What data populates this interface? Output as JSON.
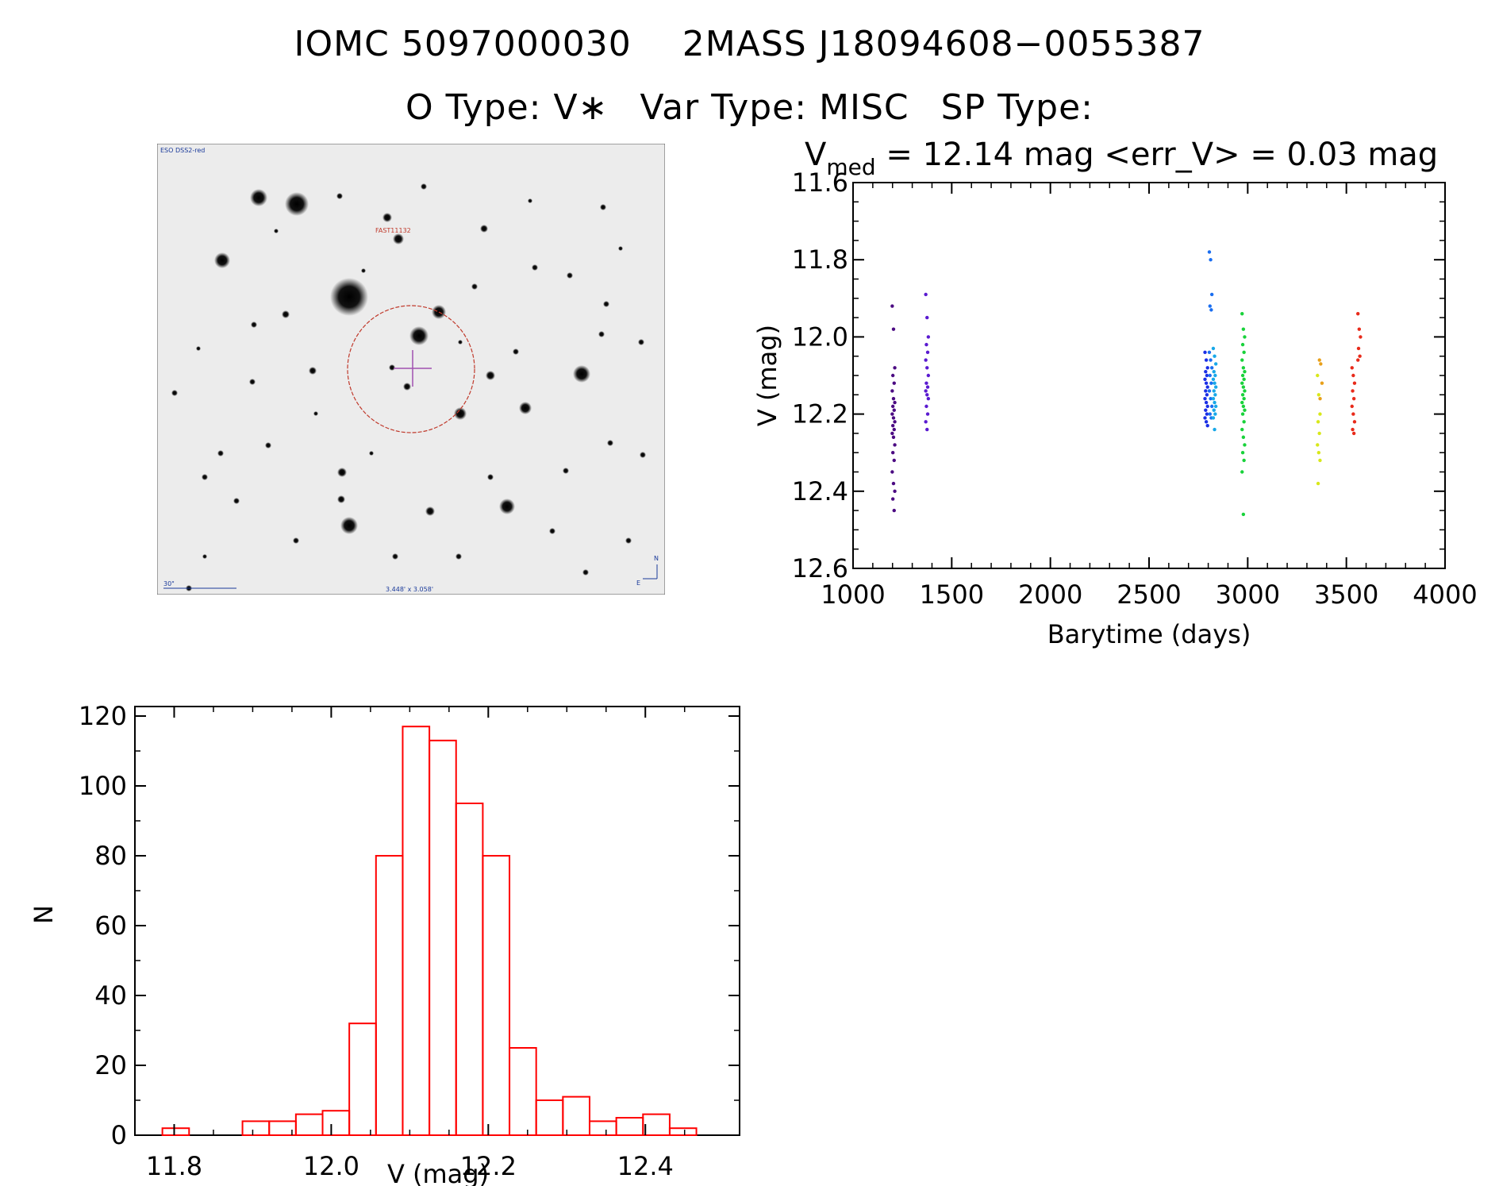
{
  "header": {
    "iomc": "IOMC 5097000030",
    "twomass": "2MASS J18094608−0055387",
    "otype": "O Type: V∗",
    "vartype": "Var Type: MISC",
    "sptype": "SP Type:"
  },
  "finder": {
    "survey_label": "ESO DSS2-red",
    "object_label": "FAST11132",
    "scale_label": "30\"",
    "fov_label": "3.448' x 3.058'",
    "north_label": "N",
    "east_label": "E"
  },
  "chart_data": [
    {
      "type": "scatter",
      "title_main": "V",
      "title_sub": "med",
      "title_rest": " = 12.14 mag <err_V> = 0.03 mag",
      "xlabel": "Barytime (days)",
      "ylabel": "V (mag)",
      "xlim": [
        1000,
        4000
      ],
      "ylim": [
        12.6,
        11.6
      ],
      "y_inverted": true,
      "xticks": [
        "1000",
        "1500",
        "2000",
        "2500",
        "3000",
        "3500",
        "4000"
      ],
      "yticks": [
        "11.6",
        "11.8",
        "12.0",
        "12.2",
        "12.4",
        "12.6"
      ],
      "series": [
        {
          "x": 1205,
          "color": "#4b0a82",
          "y": [
            11.92,
            11.98,
            12.08,
            12.1,
            12.12,
            12.14,
            12.16,
            12.17,
            12.18,
            12.19,
            12.2,
            12.21,
            12.22,
            12.23,
            12.24,
            12.25,
            12.26,
            12.28,
            12.3,
            12.32,
            12.35,
            12.38,
            12.4,
            12.42,
            12.45
          ]
        },
        {
          "x": 1375,
          "color": "#5a1ad0",
          "y": [
            11.89,
            11.95,
            12.0,
            12.02,
            12.04,
            12.06,
            12.08,
            12.1,
            12.12,
            12.13,
            12.14,
            12.15,
            12.16,
            12.18,
            12.2,
            12.22,
            12.24
          ]
        },
        {
          "x": 2790,
          "color": "#1a2ee6",
          "y": [
            12.04,
            12.06,
            12.08,
            12.09,
            12.1,
            12.11,
            12.12,
            12.13,
            12.14,
            12.15,
            12.16,
            12.17,
            12.18,
            12.19,
            12.2,
            12.21,
            12.22,
            12.23
          ]
        },
        {
          "x": 2812,
          "color": "#1a6ef0",
          "y": [
            11.78,
            11.8,
            11.89,
            11.92,
            11.93,
            12.04,
            12.06,
            12.08,
            12.1,
            12.12,
            12.14,
            12.16,
            12.18,
            12.2,
            12.21
          ]
        },
        {
          "x": 2832,
          "color": "#18a8e8",
          "y": [
            12.03,
            12.05,
            12.07,
            12.09,
            12.1,
            12.11,
            12.12,
            12.13,
            12.14,
            12.15,
            12.16,
            12.17,
            12.18,
            12.19,
            12.2,
            12.21,
            12.24
          ]
        },
        {
          "x": 2978,
          "color": "#18d23a",
          "y": [
            11.94,
            11.98,
            12.0,
            12.02,
            12.04,
            12.06,
            12.08,
            12.09,
            12.1,
            12.11,
            12.12,
            12.13,
            12.14,
            12.15,
            12.16,
            12.17,
            12.18,
            12.19,
            12.2,
            12.22,
            12.24,
            12.26,
            12.28,
            12.3,
            12.32,
            12.35,
            12.46
          ]
        },
        {
          "x": 3360,
          "color": "#d8e81a",
          "y": [
            12.1,
            12.15,
            12.2,
            12.22,
            12.25,
            12.28,
            12.3,
            12.32,
            12.38
          ]
        },
        {
          "x": 3370,
          "color": "#e8a01a",
          "y": [
            12.06,
            12.07,
            12.12,
            12.16
          ]
        },
        {
          "x": 3535,
          "color": "#e82a1a",
          "y": [
            12.08,
            12.1,
            12.12,
            12.14,
            12.16,
            12.18,
            12.2,
            12.22,
            12.24,
            12.25
          ]
        },
        {
          "x": 3565,
          "color": "#e82a1a",
          "y": [
            11.94,
            11.98,
            12.0,
            12.03,
            12.05,
            12.06
          ]
        }
      ]
    },
    {
      "type": "bar",
      "xlabel": "V (mag)",
      "ylabel": "N",
      "xlim": [
        11.75,
        12.52
      ],
      "ylim": [
        0,
        120
      ],
      "xticks": [
        "11.8",
        "12.0",
        "12.2",
        "12.4"
      ],
      "yticks": [
        "0",
        "20",
        "40",
        "60",
        "80",
        "100",
        "120"
      ],
      "bin_width": 0.034,
      "bin_starts": [
        11.785,
        11.819,
        11.853,
        11.887,
        11.921,
        11.955,
        11.989,
        12.023,
        12.057,
        12.091,
        12.125,
        12.159,
        12.193,
        12.227,
        12.261,
        12.295,
        12.329,
        12.363,
        12.397,
        12.431
      ],
      "values": [
        2,
        0,
        0,
        4,
        4,
        6,
        7,
        32,
        80,
        117,
        113,
        95,
        80,
        25,
        10,
        11,
        4,
        5,
        6,
        2
      ],
      "bar_color": "#ff0000"
    }
  ]
}
